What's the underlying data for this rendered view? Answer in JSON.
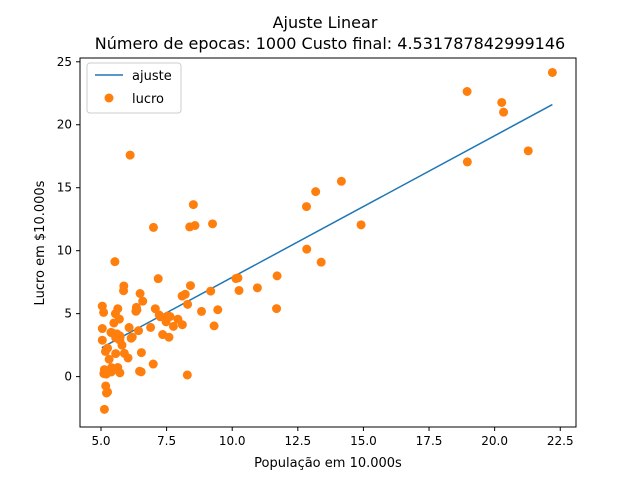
{
  "chart_data": {
    "type": "scatter",
    "title": "Ajuste Linear",
    "subtitle": "Número de epocas: 1000  Custo final: 4.531787842999146",
    "xlabel": "População em 10.000s",
    "ylabel": "Lucro em $10.000s",
    "xlim": [
      4.2,
      23.1
    ],
    "ylim": [
      -4.0,
      25.3
    ],
    "xticks": [
      5.0,
      7.5,
      10.0,
      12.5,
      15.0,
      17.5,
      20.0,
      22.5
    ],
    "xtick_labels": [
      "5.0",
      "7.5",
      "10.0",
      "12.5",
      "15.0",
      "17.5",
      "20.0",
      "22.5"
    ],
    "yticks": [
      0,
      5,
      10,
      15,
      20,
      25
    ],
    "ytick_labels": [
      "0",
      "5",
      "10",
      "15",
      "20",
      "25"
    ],
    "grid": false,
    "legend_position": "top-left",
    "series": [
      {
        "name": "ajuste",
        "kind": "line",
        "color": "#1f77b4",
        "x": [
          5.03,
          22.2
        ],
        "y": [
          2.3,
          21.6
        ]
      },
      {
        "name": "lucro",
        "kind": "scatter",
        "color": "#ff7f0e",
        "x": [
          6.11,
          5.53,
          8.52,
          7.0,
          5.86,
          8.38,
          7.48,
          8.58,
          6.49,
          5.05,
          5.71,
          14.16,
          5.73,
          8.41,
          5.64,
          5.38,
          6.37,
          5.13,
          6.43,
          7.07,
          6.19,
          20.27,
          5.49,
          6.33,
          5.56,
          18.95,
          12.83,
          10.96,
          13.18,
          22.2,
          5.25,
          6.59,
          9.25,
          5.89,
          8.21,
          7.93,
          8.1,
          5.61,
          12.84,
          6.35,
          5.41,
          6.89,
          5.64,
          9.31,
          9.45,
          8.83,
          5.18,
          21.28,
          14.91,
          18.96,
          7.22,
          8.3,
          7.18,
          7.59,
          7.76,
          5.55,
          6.15,
          6.07,
          11.71,
          5.39,
          5.4,
          5.17,
          5.05,
          10.26,
          5.31,
          5.8,
          13.39,
          6.47,
          5.56,
          6.54,
          8.09,
          10.22,
          5.25,
          6.03,
          9.18,
          7.54,
          6.99,
          5.72,
          5.13,
          8.29,
          5.05,
          5.43,
          5.11,
          5.72,
          5.7,
          5.27,
          5.21,
          20.34,
          10.14,
          7.35,
          6.53,
          7.63,
          5.87,
          11.69,
          7.26,
          5.1,
          5.2
        ],
        "y": [
          17.59,
          9.13,
          13.66,
          11.85,
          6.82,
          11.89,
          4.35,
          12.0,
          6.6,
          3.82,
          3.25,
          15.51,
          3.16,
          7.23,
          0.72,
          3.51,
          5.3,
          0.56,
          3.65,
          5.39,
          3.14,
          21.77,
          4.26,
          5.19,
          3.08,
          22.64,
          13.5,
          7.05,
          14.69,
          24.15,
          -1.22,
          5.99,
          12.13,
          1.85,
          6.54,
          4.56,
          4.12,
          3.39,
          10.12,
          5.5,
          0.56,
          3.91,
          5.39,
          4.03,
          5.31,
          5.18,
          -0.74,
          17.93,
          12.05,
          17.05,
          4.89,
          5.74,
          7.78,
          3.13,
          3.99,
          5.0,
          3.05,
          3.9,
          8.0,
          0.37,
          0.71,
          2.0,
          5.6,
          6.84,
          1.38,
          2.5,
          9.09,
          0.43,
          1.83,
          1.91,
          6.4,
          7.84,
          2.26,
          1.48,
          6.79,
          4.81,
          1.0,
          2.89,
          -2.6,
          0.13,
          2.89,
          3.47,
          0.24,
          0.3,
          4.57,
          0.41,
          -1.3,
          21.0,
          7.79,
          3.34,
          0.38,
          4.77,
          7.2,
          5.4,
          4.75,
          5.1,
          0.2
        ]
      }
    ]
  }
}
